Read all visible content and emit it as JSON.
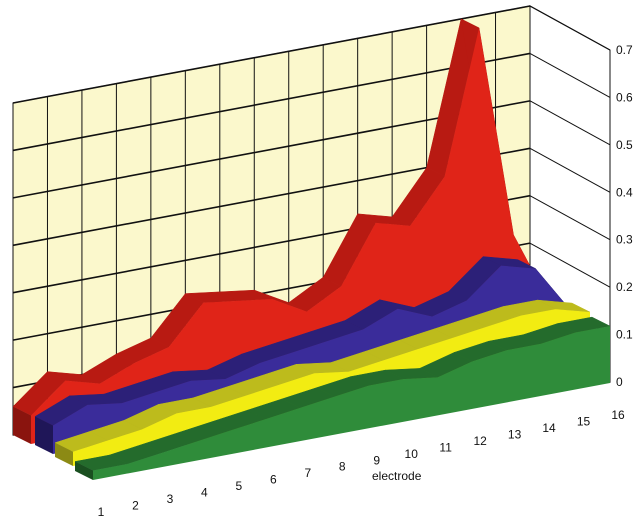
{
  "chart_data": {
    "type": "area",
    "view": "3d-ribbon",
    "xlabel": "electrode",
    "ylabel": "",
    "title": "",
    "x": [
      1,
      2,
      3,
      4,
      5,
      6,
      7,
      8,
      9,
      10,
      11,
      12,
      13,
      14,
      15,
      16
    ],
    "ylim": [
      0,
      0.7
    ],
    "yticks": [
      0,
      0.1,
      0.2,
      0.3,
      0.4,
      0.5,
      0.6,
      0.7
    ],
    "ytick_labels": [
      "0",
      "0.1",
      "0.2",
      "0.3",
      "0.4",
      "0.5",
      "0.6",
      "0.7"
    ],
    "grid": true,
    "legend": "none",
    "series": [
      {
        "color": "#e02418",
        "top": "#b81a12",
        "side": "#8a140e",
        "values": [
          0.06,
          0.12,
          0.1,
          0.13,
          0.15,
          0.23,
          0.22,
          0.21,
          0.17,
          0.21,
          0.33,
          0.31,
          0.4,
          0.7,
          0.25,
          0.1
        ]
      },
      {
        "color": "#3a2c9a",
        "top": "#2c2078",
        "side": "#1f1658",
        "values": [
          0.06,
          0.09,
          0.08,
          0.09,
          0.1,
          0.09,
          0.11,
          0.12,
          0.13,
          0.14,
          0.17,
          0.14,
          0.16,
          0.22,
          0.2,
          0.1
        ]
      },
      {
        "color": "#f2ec12",
        "top": "#bdbb1c",
        "side": "#8c8a14",
        "values": [
          0.03,
          0.04,
          0.05,
          0.07,
          0.07,
          0.08,
          0.09,
          0.1,
          0.09,
          0.1,
          0.11,
          0.12,
          0.13,
          0.14,
          0.14,
          0.12
        ]
      },
      {
        "color": "#2f8c3a",
        "top": "#246b2c",
        "side": "#1a4f20",
        "values": [
          0.02,
          0.02,
          0.03,
          0.04,
          0.05,
          0.06,
          0.07,
          0.08,
          0.09,
          0.09,
          0.08,
          0.1,
          0.11,
          0.11,
          0.12,
          0.12
        ]
      }
    ],
    "colors": {
      "wall": "#fbf8cc",
      "grid": "#111111",
      "floor": "#ffffff"
    }
  }
}
